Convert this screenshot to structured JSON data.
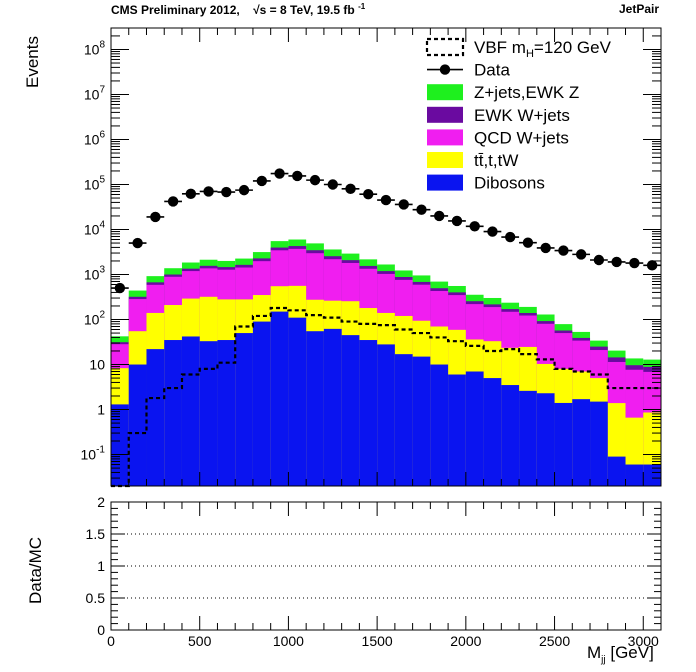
{
  "header": {
    "left": "CMS Preliminary 2012,",
    "energy": "√s = 8 TeV, 19.5 fb",
    "energy_sup": "-1",
    "right": "JetPair"
  },
  "chart_data": [
    {
      "type": "stacked histogram",
      "x_axis": {
        "label": "M_jj [GeV]",
        "range": [
          0,
          3100
        ],
        "ticks": [
          0,
          500,
          1000,
          1500,
          2000,
          2500,
          3000
        ]
      },
      "y_axis": {
        "label": "Events",
        "scale": "log",
        "range": [
          0.02,
          300000000
        ],
        "tick_labels": [
          "10^-1",
          "1",
          "10",
          "10^2",
          "10^3",
          "10^4",
          "10^5",
          "10^6",
          "10^7",
          "10^8"
        ]
      },
      "bin_width": 100,
      "bin_low_edges": [
        0,
        100,
        200,
        300,
        400,
        500,
        600,
        700,
        800,
        900,
        1000,
        1100,
        1200,
        1300,
        1400,
        1500,
        1600,
        1700,
        1800,
        1900,
        2000,
        2100,
        2200,
        2300,
        2400,
        2500,
        2600,
        2700,
        2800,
        2900,
        3000
      ],
      "legend": [
        {
          "name": "VBF m_H=120 GeV",
          "style": "dashed-line",
          "color": "#000000"
        },
        {
          "name": "Data",
          "style": "marker",
          "color": "#000000"
        },
        {
          "name": "Z+jets,EWK Z",
          "style": "fill",
          "color": "#1ef01e"
        },
        {
          "name": "EWK W+jets",
          "style": "fill",
          "color": "#6a0aa0"
        },
        {
          "name": "QCD W+jets",
          "style": "fill",
          "color": "#f01ef0"
        },
        {
          "name": "tt̄,t,tW",
          "style": "fill",
          "color": "#ffff00"
        },
        {
          "name": "Dibosons",
          "style": "fill",
          "color": "#0a14f0"
        }
      ],
      "series": [
        {
          "name": "Dibosons",
          "color": "#0a14f0",
          "values": [
            1.3,
            10,
            22,
            35,
            42,
            33,
            35,
            50,
            90,
            150,
            110,
            55,
            62,
            45,
            35,
            28,
            17,
            15,
            10,
            6,
            7,
            5,
            3.5,
            2.6,
            2.3,
            1.4,
            1.7,
            1.5,
            0.09,
            0.06,
            0.06
          ]
        },
        {
          "name": "tt̄,t,tW",
          "color": "#ffff00",
          "values": [
            7,
            45,
            118,
            175,
            250,
            287,
            245,
            230,
            260,
            400,
            450,
            220,
            200,
            210,
            145,
            112,
            103,
            79,
            60,
            53,
            29,
            28,
            20,
            22,
            8,
            6.6,
            5.3,
            3.5,
            1.3,
            0.6,
            0.8
          ]
        },
        {
          "name": "QCD W+jets",
          "color": "#f01ef0",
          "values": [
            20,
            230,
            450,
            680,
            900,
            1050,
            1000,
            1150,
            1630,
            2900,
            3150,
            2700,
            1930,
            1550,
            1160,
            890,
            640,
            500,
            360,
            290,
            184,
            156,
            125,
            98,
            70,
            42,
            27,
            16,
            10,
            7,
            6
          ]
        },
        {
          "name": "EWK W+jets",
          "color": "#6a0aa0",
          "values": [
            3,
            35,
            80,
            110,
            155,
            190,
            180,
            210,
            300,
            520,
            580,
            490,
            360,
            280,
            210,
            160,
            120,
            90,
            66,
            52,
            35,
            28,
            22,
            17,
            12,
            7,
            5,
            4,
            3,
            2,
            2
          ]
        },
        {
          "name": "Z+jets,EWK Z",
          "color": "#1ef01e",
          "values": [
            11,
            120,
            250,
            380,
            500,
            570,
            540,
            620,
            870,
            1550,
            1700,
            1450,
            1050,
            830,
            620,
            480,
            350,
            270,
            200,
            155,
            100,
            84,
            66,
            51,
            37,
            22,
            14,
            9,
            6,
            4,
            4
          ]
        },
        {
          "name": "Data",
          "color": "#000000",
          "values": [
            500,
            5000,
            19000,
            42000,
            62000,
            70000,
            68000,
            75000,
            120000,
            175000,
            155000,
            125000,
            100000,
            80000,
            61000,
            45000,
            36000,
            27500,
            20000,
            15500,
            11800,
            9000,
            6800,
            5100,
            3900,
            3400,
            2800,
            2100,
            1900,
            1800,
            1600
          ]
        },
        {
          "name": "VBF m_H=120 GeV",
          "color": "#000000",
          "values": [
            0.02,
            0.3,
            1.8,
            3,
            6,
            8,
            11,
            70,
            120,
            180,
            160,
            125,
            110,
            90,
            80,
            75,
            60,
            50,
            40,
            33,
            26,
            20,
            22,
            17,
            13,
            8,
            7,
            6,
            3,
            3,
            3
          ]
        }
      ]
    },
    {
      "type": "ratio",
      "x_axis": {
        "label": "M_jj [GeV]",
        "range": [
          0,
          3100
        ],
        "ticks": [
          0,
          500,
          1000,
          1500,
          2000,
          2500,
          3000
        ]
      },
      "y_axis": {
        "label": "Data/MC",
        "range": [
          0,
          2
        ],
        "ticks": [
          "0",
          "0.5",
          "1",
          "1.5",
          "2"
        ]
      },
      "grid": {
        "horizontal_dotted": [
          0.5,
          1,
          1.5
        ]
      },
      "values": []
    }
  ]
}
